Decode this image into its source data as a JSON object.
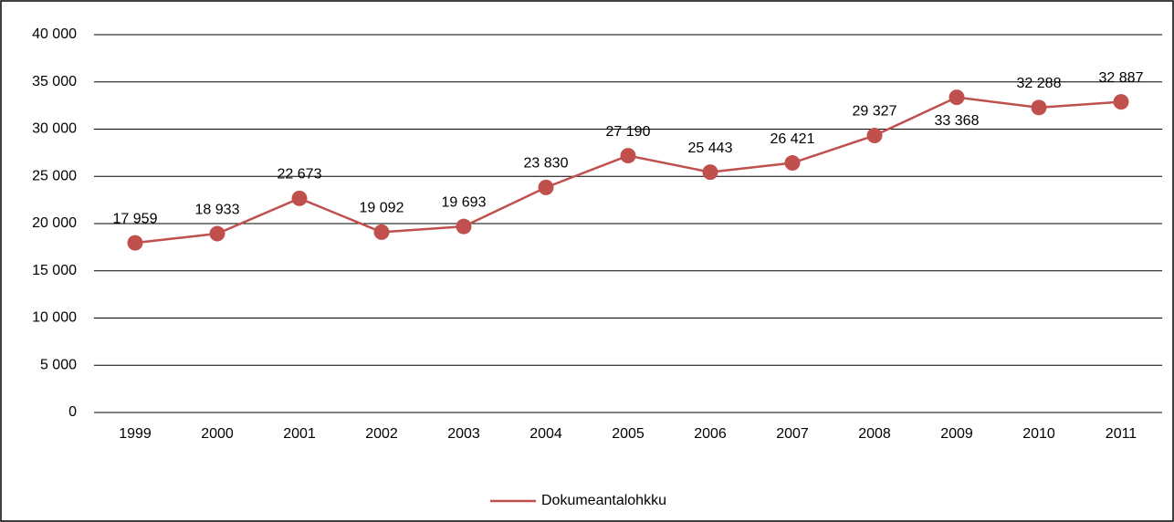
{
  "chart_data": {
    "type": "line",
    "categories": [
      "1999",
      "2000",
      "2001",
      "2002",
      "2003",
      "2004",
      "2005",
      "2006",
      "2007",
      "2008",
      "2009",
      "2010",
      "2011"
    ],
    "series": [
      {
        "name": "Dokumeantalohkku",
        "color": "#c0504d",
        "values": [
          17959,
          18933,
          22673,
          19092,
          19693,
          23830,
          27190,
          25443,
          26421,
          29327,
          33368,
          32288,
          32887
        ],
        "value_labels": [
          "17 959",
          "18 933",
          "22 673",
          "19 092",
          "19 693",
          "23 830",
          "27 190",
          "25 443",
          "26 421",
          "29 327",
          "33 368",
          "32 288",
          "32 887"
        ]
      }
    ],
    "ylim": [
      0,
      40000
    ],
    "yticks": [
      0,
      {
        "value": 5000,
        "label": "5 000"
      },
      {
        "value": 10000,
        "label": "10 000"
      },
      {
        "value": 15000,
        "label": "15 000"
      },
      {
        "value": 20000,
        "label": "20 000"
      },
      {
        "value": 25000,
        "label": "25 000"
      },
      {
        "value": 30000,
        "label": "30 000"
      },
      {
        "value": 35000,
        "label": "35 000"
      },
      {
        "value": 40000,
        "label": "40 000"
      }
    ],
    "grid": true,
    "legend": "bottom"
  }
}
